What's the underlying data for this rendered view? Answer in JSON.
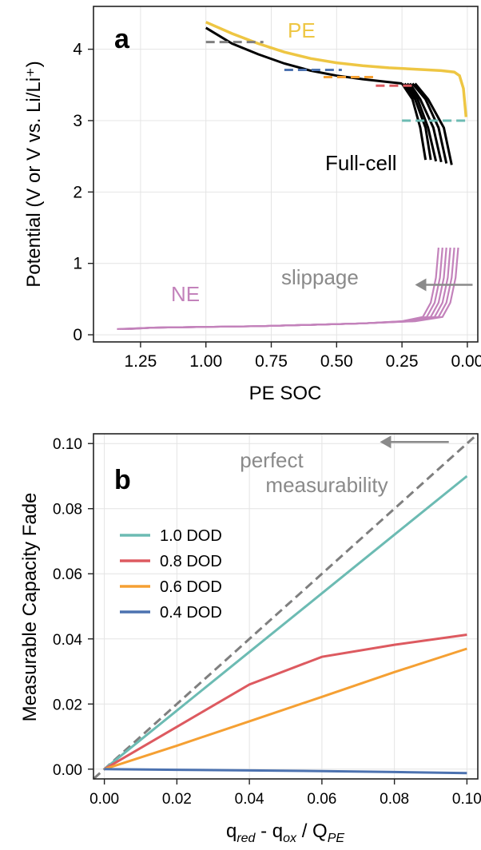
{
  "chart_data": [
    {
      "type": "line",
      "panel_label": "a",
      "xlabel": "PE SOC",
      "ylabel": "Potential (V or V vs. Li/Li⁺)",
      "xlim": [
        1.43,
        -0.04
      ],
      "ylim": [
        -0.1,
        4.6
      ],
      "x_inverted": true,
      "grid": true,
      "xticks": [
        1.25,
        1.0,
        0.75,
        0.5,
        0.25,
        0.0
      ],
      "xtick_labels": [
        "1.25",
        "1.00",
        "0.75",
        "0.50",
        "0.25",
        "0.00"
      ],
      "yticks": [
        0,
        1,
        2,
        3,
        4
      ],
      "ytick_labels": [
        "0",
        "1",
        "2",
        "3",
        "4"
      ],
      "annotations": {
        "pe": "PE",
        "full_cell": "Full-cell",
        "ne": "NE",
        "slippage": "slippage"
      },
      "colors": {
        "pe": "#eec643",
        "full_cell": "#000000",
        "ne": "#c382bb",
        "arrow": "#8a8a8a"
      },
      "pe_curve": [
        [
          1.0,
          4.38
        ],
        [
          0.9,
          4.22
        ],
        [
          0.8,
          4.08
        ],
        [
          0.7,
          3.96
        ],
        [
          0.6,
          3.87
        ],
        [
          0.5,
          3.81
        ],
        [
          0.4,
          3.77
        ],
        [
          0.3,
          3.74
        ],
        [
          0.2,
          3.72
        ],
        [
          0.1,
          3.7
        ],
        [
          0.05,
          3.68
        ],
        [
          0.03,
          3.63
        ],
        [
          0.015,
          3.45
        ],
        [
          0.005,
          3.05
        ]
      ],
      "full_cell_base": [
        [
          1.0,
          4.3
        ],
        [
          0.9,
          4.08
        ],
        [
          0.8,
          3.93
        ],
        [
          0.7,
          3.8
        ],
        [
          0.6,
          3.7
        ],
        [
          0.5,
          3.63
        ],
        [
          0.4,
          3.58
        ],
        [
          0.3,
          3.54
        ],
        [
          0.25,
          3.52
        ]
      ],
      "full_cell_tails": [
        {
          "x": [
            0.25,
            0.21,
            0.18,
            0.16
          ],
          "y": [
            3.52,
            3.3,
            2.9,
            2.45
          ]
        },
        {
          "x": [
            0.24,
            0.2,
            0.16,
            0.14
          ],
          "y": [
            3.52,
            3.3,
            2.9,
            2.45
          ]
        },
        {
          "x": [
            0.23,
            0.19,
            0.15,
            0.12
          ],
          "y": [
            3.52,
            3.3,
            2.9,
            2.43
          ]
        },
        {
          "x": [
            0.22,
            0.18,
            0.13,
            0.1
          ],
          "y": [
            3.52,
            3.3,
            2.9,
            2.42
          ]
        },
        {
          "x": [
            0.21,
            0.16,
            0.11,
            0.08
          ],
          "y": [
            3.52,
            3.3,
            2.9,
            2.4
          ]
        },
        {
          "x": [
            0.2,
            0.15,
            0.09,
            0.06
          ],
          "y": [
            3.52,
            3.3,
            2.9,
            2.38
          ]
        }
      ],
      "ne_curves": [
        {
          "x": [
            1.34,
            1.2,
            1.0,
            0.8,
            0.6,
            0.4,
            0.25,
            0.17,
            0.14,
            0.12,
            0.11
          ],
          "y": [
            0.08,
            0.1,
            0.11,
            0.12,
            0.14,
            0.16,
            0.19,
            0.25,
            0.45,
            0.8,
            1.22
          ]
        },
        {
          "x": [
            1.33,
            1.2,
            1.0,
            0.8,
            0.6,
            0.4,
            0.24,
            0.155,
            0.125,
            0.105,
            0.095
          ],
          "y": [
            0.08,
            0.1,
            0.11,
            0.12,
            0.14,
            0.16,
            0.19,
            0.25,
            0.45,
            0.8,
            1.22
          ]
        },
        {
          "x": [
            1.32,
            1.2,
            1.0,
            0.8,
            0.6,
            0.4,
            0.23,
            0.14,
            0.11,
            0.09,
            0.08
          ],
          "y": [
            0.08,
            0.1,
            0.11,
            0.12,
            0.14,
            0.16,
            0.19,
            0.25,
            0.45,
            0.8,
            1.22
          ]
        },
        {
          "x": [
            1.31,
            1.2,
            1.0,
            0.8,
            0.6,
            0.4,
            0.22,
            0.125,
            0.095,
            0.075,
            0.065
          ],
          "y": [
            0.08,
            0.1,
            0.11,
            0.12,
            0.14,
            0.16,
            0.19,
            0.25,
            0.45,
            0.8,
            1.22
          ]
        },
        {
          "x": [
            1.3,
            1.2,
            1.0,
            0.8,
            0.6,
            0.4,
            0.21,
            0.11,
            0.08,
            0.06,
            0.05
          ],
          "y": [
            0.08,
            0.1,
            0.11,
            0.12,
            0.14,
            0.16,
            0.19,
            0.25,
            0.45,
            0.8,
            1.22
          ]
        },
        {
          "x": [
            1.29,
            1.2,
            1.0,
            0.8,
            0.6,
            0.4,
            0.2,
            0.095,
            0.065,
            0.045,
            0.035
          ],
          "y": [
            0.08,
            0.1,
            0.11,
            0.12,
            0.14,
            0.16,
            0.19,
            0.25,
            0.45,
            0.8,
            1.22
          ]
        }
      ],
      "dashed_markers": [
        {
          "x": [
            1.0,
            0.78
          ],
          "y": 4.1,
          "color": "#7f7f7f"
        },
        {
          "x": [
            0.7,
            0.48
          ],
          "y": 3.71,
          "color": "#4c72b0"
        },
        {
          "x": [
            0.55,
            0.35
          ],
          "y": 3.61,
          "color": "#f5a033"
        },
        {
          "x": [
            0.35,
            0.2
          ],
          "y": 3.49,
          "color": "#dd5a60"
        },
        {
          "x": [
            0.25,
            0.0
          ],
          "y": 3.0,
          "color": "#6cbbb3"
        }
      ],
      "slippage_arrow": {
        "from": [
          -0.02,
          0.7
        ],
        "to": [
          0.2,
          0.7
        ]
      }
    },
    {
      "type": "line",
      "panel_label": "b",
      "xlabel": "q_red - q_ox / Q_PE",
      "xlabel_parts": {
        "q": "q",
        "red": "red",
        "mid": " - q",
        "ox": "ox",
        "slash": " / Q",
        "pe": "PE"
      },
      "ylabel": "Measurable Capacity Fade",
      "xlim": [
        -0.003,
        0.103
      ],
      "ylim": [
        -0.003,
        0.103
      ],
      "grid": true,
      "xticks": [
        0.0,
        0.02,
        0.04,
        0.06,
        0.08,
        0.1
      ],
      "xtick_labels": [
        "0.00",
        "0.02",
        "0.04",
        "0.06",
        "0.08",
        "0.10"
      ],
      "yticks": [
        0.0,
        0.02,
        0.04,
        0.06,
        0.08,
        0.1
      ],
      "ytick_labels": [
        "0.00",
        "0.02",
        "0.04",
        "0.06",
        "0.08",
        "0.10"
      ],
      "legend_position": "center-left",
      "annotation_lines": [
        "perfect",
        "measurability"
      ],
      "reference_line": {
        "x": [
          -0.003,
          0.103
        ],
        "y": [
          -0.003,
          0.103
        ],
        "color": "#7f7f7f"
      },
      "reference_arrow": {
        "from": [
          0.095,
          0.1005
        ],
        "to": [
          0.076,
          0.1005
        ]
      },
      "x": [
        0.0,
        0.02,
        0.04,
        0.06,
        0.08,
        0.1
      ],
      "series": [
        {
          "name": "1.0 DOD",
          "color": "#6cbbb3",
          "values": [
            0.0,
            0.018,
            0.036,
            0.054,
            0.072,
            0.09
          ]
        },
        {
          "name": "0.8 DOD",
          "color": "#dd5a60",
          "values": [
            0.0,
            0.013,
            0.026,
            0.0345,
            0.0382,
            0.0413
          ]
        },
        {
          "name": "0.6 DOD",
          "color": "#f5a033",
          "values": [
            0.0,
            0.0072,
            0.0147,
            0.0222,
            0.0298,
            0.037
          ]
        },
        {
          "name": "0.4 DOD",
          "color": "#4c72b0",
          "values": [
            0.0,
            -0.0002,
            -0.0004,
            -0.0006,
            -0.0009,
            -0.0012
          ]
        }
      ]
    }
  ]
}
